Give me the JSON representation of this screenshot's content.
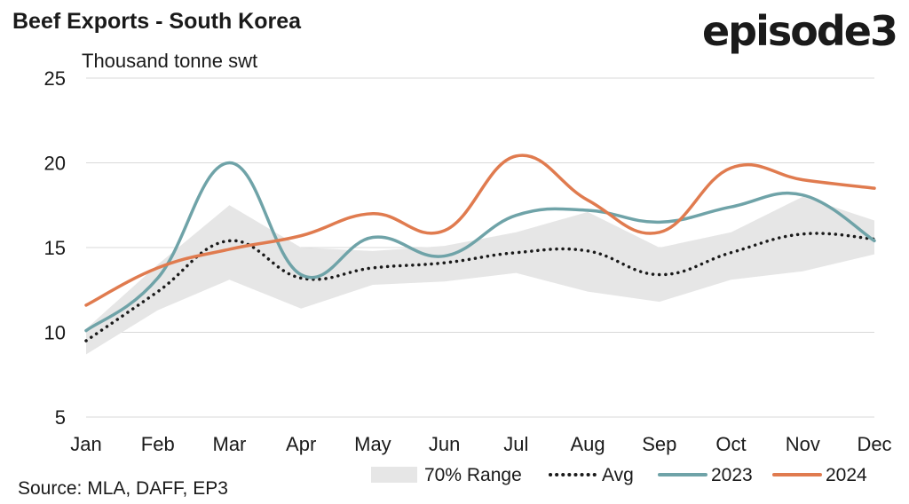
{
  "header": {
    "title": "Beef Exports - South Korea",
    "brand": "episode3"
  },
  "footer": {
    "source": "Source: MLA, DAFF, EP3"
  },
  "chart_data": {
    "type": "line",
    "title": "Beef Exports - South Korea",
    "ylabel": "Thousand tonne swt",
    "xlabel": "",
    "ylim": [
      5,
      25
    ],
    "yticks": [
      5,
      10,
      15,
      20,
      25
    ],
    "grid": true,
    "legend_position": "bottom",
    "categories": [
      "Jan",
      "Feb",
      "Mar",
      "Apr",
      "May",
      "Jun",
      "Jul",
      "Aug",
      "Sep",
      "Oct",
      "Nov",
      "Dec"
    ],
    "range": {
      "name": "70% Range",
      "color": "#e6e6e6",
      "low": [
        8.7,
        11.3,
        13.1,
        11.4,
        12.8,
        13.0,
        13.5,
        12.4,
        11.8,
        13.1,
        13.6,
        14.6
      ],
      "high": [
        10.2,
        14.0,
        17.5,
        15.0,
        14.8,
        15.1,
        15.9,
        17.1,
        15.0,
        15.9,
        18.0,
        16.6
      ]
    },
    "series": [
      {
        "name": "Avg",
        "color": "#1a1a1a",
        "style": "dotted",
        "values": [
          9.5,
          12.4,
          15.4,
          13.2,
          13.8,
          14.1,
          14.7,
          14.8,
          13.4,
          14.7,
          15.8,
          15.5
        ]
      },
      {
        "name": "2023",
        "color": "#6fa3a8",
        "style": "solid",
        "values": [
          10.1,
          13.2,
          20.0,
          13.4,
          15.6,
          14.5,
          16.9,
          17.2,
          16.5,
          17.4,
          18.1,
          15.4
        ]
      },
      {
        "name": "2024",
        "color": "#e07b4f",
        "style": "solid",
        "values": [
          11.6,
          13.8,
          14.9,
          15.7,
          17.0,
          16.0,
          20.4,
          17.8,
          15.9,
          19.7,
          19.0,
          18.5
        ]
      }
    ]
  }
}
